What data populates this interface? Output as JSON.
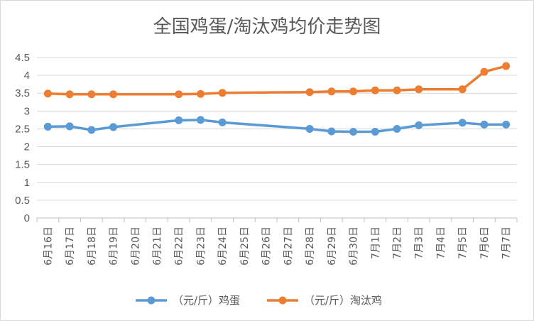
{
  "chart_data": {
    "type": "line",
    "title": "全国鸡蛋/淘汰鸡均价走势图",
    "xlabel": "",
    "ylabel": "",
    "categories": [
      "6月16日",
      "6月17日",
      "6月18日",
      "6月19日",
      "6月20日",
      "6月21日",
      "6月22日",
      "6月23日",
      "6月24日",
      "6月25日",
      "6月26日",
      "6月27日",
      "6月28日",
      "6月29日",
      "6月30日",
      "7月1日",
      "7月2日",
      "7月3日",
      "7月4日",
      "7月5日",
      "7月6日",
      "7月7日"
    ],
    "ylim": [
      0,
      4.5
    ],
    "yticks": [
      "0",
      "0.5",
      "1",
      "1.5",
      "2",
      "2.5",
      "3",
      "3.5",
      "4",
      "4.5"
    ],
    "grid": true,
    "legend_position": "bottom",
    "series": [
      {
        "name": "（元/斤）鸡蛋",
        "color": "#5b9bd5",
        "values": [
          2.56,
          2.57,
          2.47,
          2.55,
          null,
          null,
          2.74,
          2.75,
          2.68,
          null,
          null,
          null,
          2.5,
          2.43,
          2.42,
          2.42,
          2.5,
          2.6,
          null,
          2.67,
          2.62,
          2.62
        ]
      },
      {
        "name": "（元/斤）淘汰鸡",
        "color": "#ed7d31",
        "values": [
          3.49,
          3.47,
          3.47,
          3.47,
          null,
          null,
          3.47,
          3.48,
          3.51,
          null,
          null,
          null,
          3.53,
          3.55,
          3.55,
          3.58,
          3.58,
          3.61,
          null,
          3.61,
          4.1,
          4.26
        ]
      }
    ]
  }
}
